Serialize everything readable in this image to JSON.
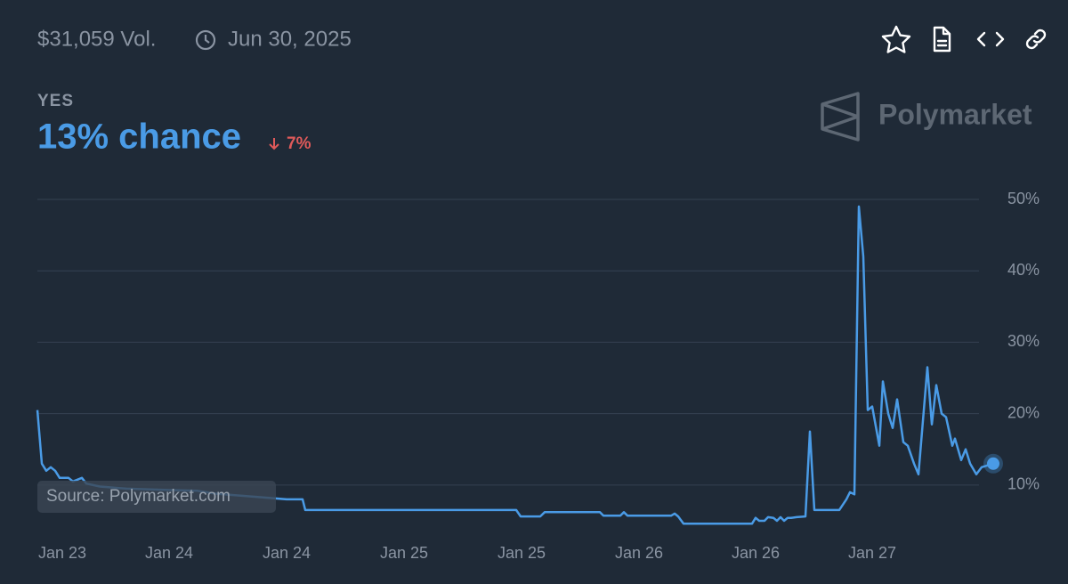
{
  "header": {
    "volume": "$31,059 Vol.",
    "date": "Jun 30, 2025",
    "outcome": "YES",
    "chance": "13% chance",
    "change": "7%",
    "brand": "Polymarket"
  },
  "source": "Source: Polymarket.com",
  "chart_data": {
    "type": "line",
    "color": "#4a9be6",
    "x": [
      0,
      5,
      10,
      15,
      20,
      25,
      35,
      40,
      50,
      55,
      70,
      100,
      150,
      180,
      200,
      230,
      260,
      280,
      298,
      301,
      538,
      543,
      565,
      570,
      632,
      636,
      655,
      659,
      663,
      712,
      716,
      720,
      726,
      803,
      807,
      811,
      817,
      821,
      827,
      831,
      835,
      839,
      843,
      847,
      853,
      863,
      868,
      873,
      901,
      909,
      913,
      918,
      923,
      928,
      933,
      938,
      946,
      950,
      956,
      961,
      966,
      973,
      978,
      985,
      990,
      1000,
      1005,
      1010,
      1016,
      1021,
      1028,
      1031,
      1038,
      1043,
      1048,
      1055,
      1061,
      1074
    ],
    "values": [
      20.5,
      13,
      12,
      12.5,
      12,
      11,
      11,
      10.5,
      11,
      10.2,
      9.8,
      9.5,
      9.3,
      9.2,
      8.8,
      8.5,
      8.2,
      8,
      8,
      6.5,
      6.5,
      5.6,
      5.6,
      6.2,
      6.2,
      5.7,
      5.7,
      6.2,
      5.7,
      5.7,
      6.0,
      5.6,
      4.6,
      4.6,
      5.4,
      5.0,
      5.0,
      5.5,
      5.4,
      5.0,
      5.5,
      5.0,
      5.4,
      5.4,
      5.5,
      5.6,
      17.5,
      6.5,
      6.5,
      8,
      9,
      8.7,
      49,
      42,
      20.5,
      21,
      15.5,
      24.5,
      20,
      18,
      22,
      16,
      15.5,
      13,
      11.5,
      26.5,
      18.5,
      24,
      20,
      19.5,
      15.5,
      16.5,
      13.5,
      15,
      13,
      11.5,
      12.5,
      13
    ],
    "xlim": [
      0,
      1074
    ],
    "xticks": [
      {
        "value": 28,
        "label": "Jan 23"
      },
      {
        "value": 148,
        "label": "Jan 24"
      },
      {
        "value": 280,
        "label": "Jan 24"
      },
      {
        "value": 412,
        "label": "Jan 25"
      },
      {
        "value": 544,
        "label": "Jan 25"
      },
      {
        "value": 676,
        "label": "Jan 26"
      },
      {
        "value": 807,
        "label": "Jan 26"
      },
      {
        "value": 938,
        "label": "Jan 27"
      }
    ],
    "ylim": [
      3,
      50
    ],
    "yticks": [
      {
        "value": 10,
        "label": "10%"
      },
      {
        "value": 20,
        "label": "20%"
      },
      {
        "value": 30,
        "label": "30%"
      },
      {
        "value": 40,
        "label": "40%"
      },
      {
        "value": 50,
        "label": "50%"
      }
    ],
    "grid": true
  }
}
